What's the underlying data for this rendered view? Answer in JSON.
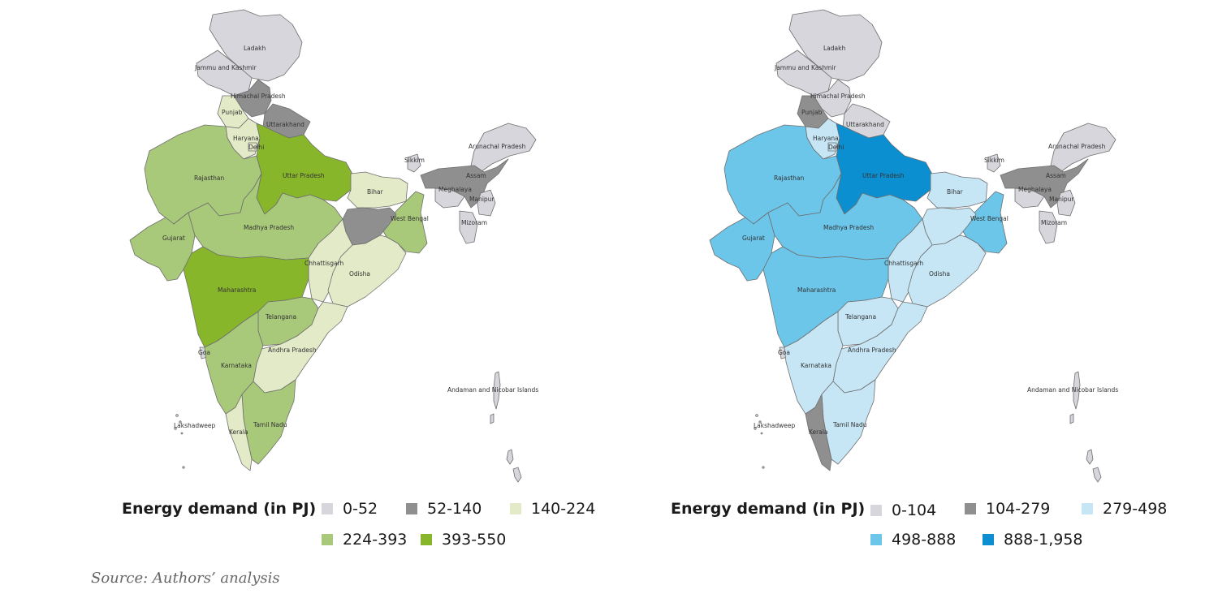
{
  "maps": [
    {
      "colors": {
        "0-52": "#d6d6dc",
        "52-140": "#8f8f8f",
        "140-224": "#e3eac7",
        "224-393": "#a9c97a",
        "393-550": "#88b62a"
      },
      "legend_title": "Energy demand (in PJ)",
      "legend": [
        {
          "label": "0-52",
          "color": "#d6d6dc"
        },
        {
          "label": "52-140",
          "color": "#8f8f8f"
        },
        {
          "label": "140-224",
          "color": "#e3eac7"
        },
        {
          "label": "224-393",
          "color": "#a9c97a"
        },
        {
          "label": "393-550",
          "color": "#88b62a"
        }
      ],
      "states": {
        "ladakh": {
          "label": "Ladakh",
          "class": "0-52"
        },
        "jk": {
          "label": "Jammu and Kashmir",
          "class": "0-52"
        },
        "hp": {
          "label": "Himachal Pradesh",
          "class": "52-140"
        },
        "punjab": {
          "label": "Punjab",
          "class": "140-224"
        },
        "uttarakhand": {
          "label": "Uttarakhand",
          "class": "52-140"
        },
        "haryana": {
          "label": "Haryana",
          "class": "140-224"
        },
        "delhi": {
          "label": "Delhi",
          "class": "140-224"
        },
        "rajasthan": {
          "label": "Rajasthan",
          "class": "224-393"
        },
        "up": {
          "label": "Uttar Pradesh",
          "class": "393-550"
        },
        "bihar": {
          "label": "Bihar",
          "class": "140-224"
        },
        "sikkim": {
          "label": "Sikkim",
          "class": "0-52"
        },
        "arunachal": {
          "label": "Arunachal Pradesh",
          "class": "0-52"
        },
        "assam": {
          "label": "Assam",
          "class": "52-140"
        },
        "meghalaya": {
          "label": "Meghalaya",
          "class": "0-52"
        },
        "manipur": {
          "label": "Manipur",
          "class": "0-52"
        },
        "mizoram": {
          "label": "Mizoram",
          "class": "0-52"
        },
        "wb": {
          "label": "West Bengal",
          "class": "224-393"
        },
        "jharkhand": {
          "label": "",
          "class": "52-140"
        },
        "gujarat": {
          "label": "Gujarat",
          "class": "224-393"
        },
        "mp": {
          "label": "Madhya Pradesh",
          "class": "224-393"
        },
        "chhattisgarh": {
          "label": "Chhattisgarh",
          "class": "140-224"
        },
        "odisha": {
          "label": "Odisha",
          "class": "140-224"
        },
        "maharashtra": {
          "label": "Maharashtra",
          "class": "393-550"
        },
        "telangana": {
          "label": "Telangana",
          "class": "224-393"
        },
        "ap": {
          "label": "Andhra Pradesh",
          "class": "140-224"
        },
        "goa": {
          "label": "Goa",
          "class": "0-52"
        },
        "karnataka": {
          "label": "Karnataka",
          "class": "224-393"
        },
        "tn": {
          "label": "Tamil Nadu",
          "class": "224-393"
        },
        "kerala": {
          "label": "Kerala",
          "class": "140-224"
        },
        "lakshadweep": {
          "label": "Lakshadweep",
          "class": "0-52"
        },
        "andaman": {
          "label": "Andaman and Nicobar Islands",
          "class": "0-52"
        }
      }
    },
    {
      "colors": {
        "0-104": "#d6d6dc",
        "104-279": "#8f8f8f",
        "279-498": "#c6e6f6",
        "498-888": "#6cc6ea",
        "888-1,958": "#0b8fd0"
      },
      "legend_title": "Energy demand (in PJ)",
      "legend": [
        {
          "label": "0-104",
          "color": "#d6d6dc"
        },
        {
          "label": "104-279",
          "color": "#8f8f8f"
        },
        {
          "label": "279-498",
          "color": "#c6e6f6"
        },
        {
          "label": "498-888",
          "color": "#6cc6ea"
        },
        {
          "label": "888-1,958",
          "color": "#0b8fd0"
        }
      ],
      "states": {
        "ladakh": {
          "label": "Ladakh",
          "class": "0-104"
        },
        "jk": {
          "label": "Jammu and Kashmir",
          "class": "0-104"
        },
        "hp": {
          "label": "Himachal Pradesh",
          "class": "0-104"
        },
        "punjab": {
          "label": "Punjab",
          "class": "104-279"
        },
        "uttarakhand": {
          "label": "Uttarakhand",
          "class": "0-104"
        },
        "haryana": {
          "label": "Haryana",
          "class": "279-498"
        },
        "delhi": {
          "label": "Delhi",
          "class": "279-498"
        },
        "rajasthan": {
          "label": "Rajasthan",
          "class": "498-888"
        },
        "up": {
          "label": "Uttar Pradesh",
          "class": "888-1,958"
        },
        "bihar": {
          "label": "Bihar",
          "class": "279-498"
        },
        "sikkim": {
          "label": "Sikkim",
          "class": "0-104"
        },
        "arunachal": {
          "label": "Arunachal Pradesh",
          "class": "0-104"
        },
        "assam": {
          "label": "Assam",
          "class": "104-279"
        },
        "meghalaya": {
          "label": "Meghalaya",
          "class": "0-104"
        },
        "manipur": {
          "label": "Manipur",
          "class": "0-104"
        },
        "mizoram": {
          "label": "Mizoram",
          "class": "0-104"
        },
        "wb": {
          "label": "West Bengal",
          "class": "498-888"
        },
        "jharkhand": {
          "label": "",
          "class": "279-498"
        },
        "gujarat": {
          "label": "Gujarat",
          "class": "498-888"
        },
        "mp": {
          "label": "Madhya Pradesh",
          "class": "498-888"
        },
        "chhattisgarh": {
          "label": "Chhattisgarh",
          "class": "279-498"
        },
        "odisha": {
          "label": "Odisha",
          "class": "279-498"
        },
        "maharashtra": {
          "label": "Maharashtra",
          "class": "498-888"
        },
        "telangana": {
          "label": "Telangana",
          "class": "279-498"
        },
        "ap": {
          "label": "Andhra Pradesh",
          "class": "279-498"
        },
        "goa": {
          "label": "Goa",
          "class": "0-104"
        },
        "karnataka": {
          "label": "Karnataka",
          "class": "279-498"
        },
        "tn": {
          "label": "Tamil Nadu",
          "class": "279-498"
        },
        "kerala": {
          "label": "Kerala",
          "class": "104-279"
        },
        "lakshadweep": {
          "label": "Lakshadweep",
          "class": "0-104"
        },
        "andaman": {
          "label": "Andaman and Nicobar Islands",
          "class": "0-104"
        }
      }
    }
  ],
  "source": "Source: Authors’ analysis"
}
